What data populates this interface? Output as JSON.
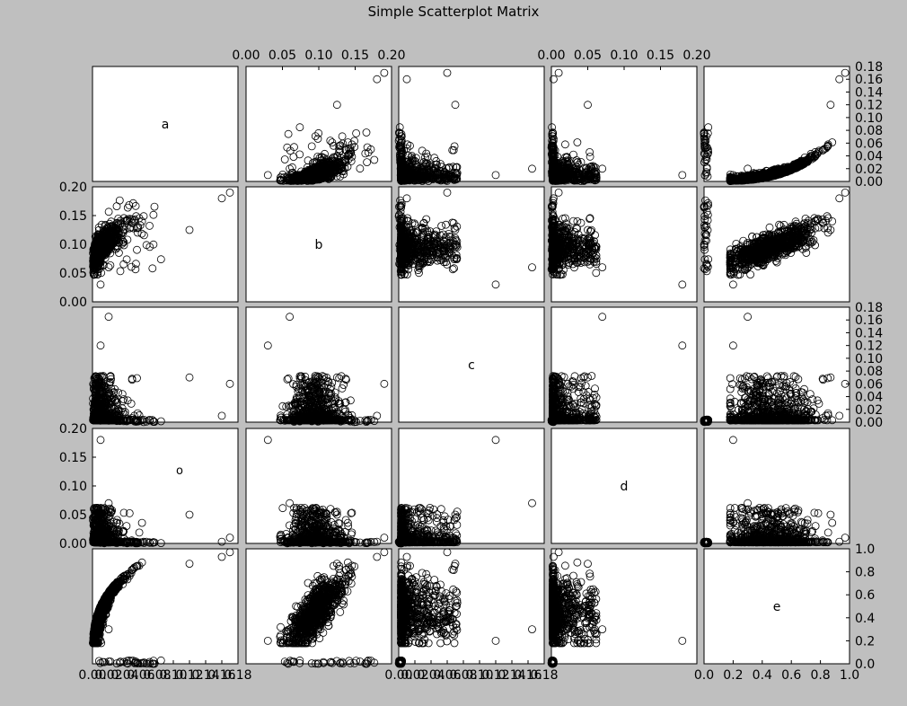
{
  "chart_data": {
    "type": "scatter",
    "title": "Simple Scatterplot Matrix",
    "variables": [
      "a",
      "b",
      "c",
      "d",
      "e"
    ],
    "marker": "open-circle",
    "colors": {
      "background": "#bfbfbf",
      "panel": "#ffffff",
      "marker": "#000000"
    },
    "axes": {
      "a": {
        "range": [
          0,
          0.18
        ],
        "ticks": [
          "0.00",
          "0.02",
          "0.04",
          "0.06",
          "0.08",
          "0.10",
          "0.12",
          "0.14",
          "0.16",
          "0.18"
        ]
      },
      "b": {
        "range": [
          0,
          0.2
        ],
        "ticks": [
          "0.00",
          "0.05",
          "0.10",
          "0.15",
          "0.20"
        ]
      },
      "c": {
        "range": [
          0,
          0.18
        ],
        "ticks": [
          "0.00",
          "0.02",
          "0.04",
          "0.06",
          "0.08",
          "0.10",
          "0.12",
          "0.14",
          "0.16",
          "0.18"
        ]
      },
      "d": {
        "range": [
          0,
          0.2
        ],
        "ticks": [
          "0.00",
          "0.05",
          "0.10",
          "0.15",
          "0.20"
        ]
      },
      "e": {
        "range": [
          0,
          1.0
        ],
        "ticks": [
          "0.0",
          "0.2",
          "0.4",
          "0.6",
          "0.8",
          "1.0"
        ]
      }
    },
    "tick_placement": {
      "top": [
        "b",
        "d"
      ],
      "bottom": [
        "a",
        "c",
        "e"
      ],
      "left": [
        "b",
        "d"
      ],
      "right": [
        "a",
        "c",
        "e"
      ]
    },
    "grid": false,
    "legend": "none",
    "stray_glyph": "o"
  }
}
